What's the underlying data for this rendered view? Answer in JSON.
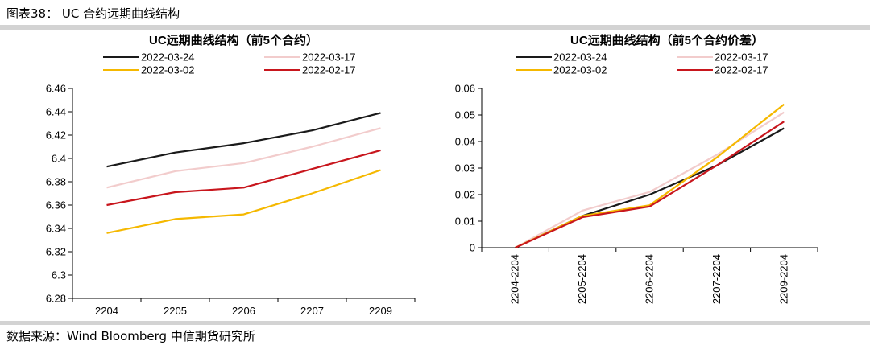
{
  "figure_title": "图表38： UC 合约远期曲线结构",
  "source": "数据来源：Wind  Bloomberg  中信期货研究所",
  "chart_data": [
    {
      "type": "line",
      "title": "UC远期曲线结构（前5个合约）",
      "categories": [
        "2204",
        "2205",
        "2206",
        "2207",
        "2209"
      ],
      "ylim": [
        6.28,
        6.46
      ],
      "yticks": [
        "6.28",
        "6.3",
        "6.32",
        "6.34",
        "6.36",
        "6.38",
        "6.4",
        "6.42",
        "6.44",
        "6.46"
      ],
      "grid": false,
      "legend_position": "top",
      "series": [
        {
          "name": "2022-03-24",
          "color": "#1a1a1a",
          "values": [
            6.393,
            6.405,
            6.413,
            6.424,
            6.439
          ]
        },
        {
          "name": "2022-03-17",
          "color": "#f2cccc",
          "values": [
            6.375,
            6.389,
            6.396,
            6.41,
            6.426
          ]
        },
        {
          "name": "2022-03-02",
          "color": "#f5b800",
          "values": [
            6.336,
            6.348,
            6.352,
            6.37,
            6.39
          ]
        },
        {
          "name": "2022-02-17",
          "color": "#c8161d",
          "values": [
            6.36,
            6.371,
            6.375,
            6.391,
            6.407
          ]
        }
      ]
    },
    {
      "type": "line",
      "title": "UC远期曲线结构（前5个合约价差）",
      "categories": [
        "2204-2204",
        "2205-2204",
        "2206-2204",
        "2207-2204",
        "2209-2204"
      ],
      "ylim": [
        0,
        0.06
      ],
      "yticks": [
        "0",
        "0.01",
        "0.02",
        "0.03",
        "0.04",
        "0.05",
        "0.06"
      ],
      "grid": false,
      "legend_position": "top",
      "series": [
        {
          "name": "2022-03-24",
          "color": "#1a1a1a",
          "values": [
            0,
            0.012,
            0.02,
            0.031,
            0.045
          ]
        },
        {
          "name": "2022-03-17",
          "color": "#f2cccc",
          "values": [
            0,
            0.014,
            0.021,
            0.035,
            0.051
          ]
        },
        {
          "name": "2022-03-02",
          "color": "#f5b800",
          "values": [
            0,
            0.012,
            0.016,
            0.034,
            0.054
          ]
        },
        {
          "name": "2022-02-17",
          "color": "#c8161d",
          "values": [
            0,
            0.0115,
            0.0155,
            0.031,
            0.0475
          ]
        }
      ]
    }
  ]
}
